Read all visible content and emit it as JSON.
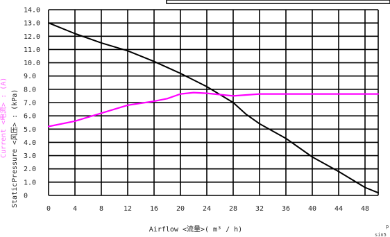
{
  "chart_data": {
    "type": "line",
    "xlabel": "Airflow  <流量>( m³ / h)",
    "ylabel_parts": {
      "static": "Static",
      "pressure": "Pressure  <风压> : (kPa)",
      "current": "Current  <电流> : (A)"
    },
    "xlim": [
      0,
      50
    ],
    "ylim": [
      0,
      14
    ],
    "x_ticks": [
      0,
      4,
      8,
      12,
      16,
      20,
      24,
      28,
      32,
      36,
      40,
      44,
      48
    ],
    "y_ticks": [
      "0",
      "1.0",
      "2.0",
      "3.0",
      "4.0",
      "5.0",
      "6.0",
      "7.0",
      "8.0",
      "9.0",
      "10.0",
      "11.0",
      "12.0",
      "13.0",
      "14.0"
    ],
    "grid": true,
    "corner_text": [
      "p",
      "sin5"
    ],
    "colors": {
      "pressure": "#000000",
      "current": "#ff00ff",
      "current_label": "#ff66ff"
    },
    "series": [
      {
        "key": "pressure",
        "points": [
          [
            0,
            13.0
          ],
          [
            4,
            12.2
          ],
          [
            8,
            11.5
          ],
          [
            12,
            10.9
          ],
          [
            16,
            10.1
          ],
          [
            20,
            9.2
          ],
          [
            24,
            8.2
          ],
          [
            28,
            7.0
          ],
          [
            30,
            6.1
          ],
          [
            32,
            5.4
          ],
          [
            36,
            4.3
          ],
          [
            40,
            2.9
          ],
          [
            44,
            1.8
          ],
          [
            48,
            0.6
          ],
          [
            50,
            0.2
          ]
        ]
      },
      {
        "key": "current",
        "points": [
          [
            0,
            5.2
          ],
          [
            4,
            5.6
          ],
          [
            8,
            6.2
          ],
          [
            12,
            6.8
          ],
          [
            16,
            7.1
          ],
          [
            18,
            7.3
          ],
          [
            20,
            7.65
          ],
          [
            22,
            7.75
          ],
          [
            24,
            7.7
          ],
          [
            26,
            7.6
          ],
          [
            28,
            7.5
          ],
          [
            32,
            7.65
          ],
          [
            36,
            7.65
          ],
          [
            40,
            7.65
          ],
          [
            44,
            7.65
          ],
          [
            48,
            7.65
          ],
          [
            50,
            7.65
          ]
        ]
      }
    ]
  }
}
